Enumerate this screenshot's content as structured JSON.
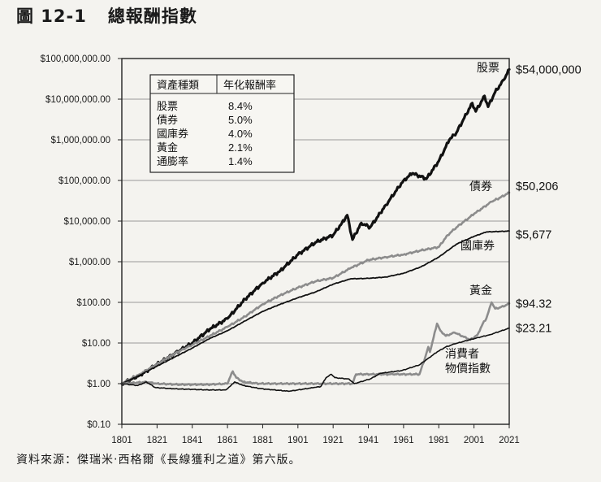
{
  "figure": {
    "number": "圖 12-1",
    "title": "總報酬指數",
    "source": "資料來源：傑瑞米‧西格爾《長線獲利之道》第六版。"
  },
  "chart_data": {
    "type": "line",
    "title": "總報酬指數",
    "xlabel": "",
    "ylabel": "",
    "yscale": "log",
    "ylim": [
      0.1,
      100000000
    ],
    "xlim": [
      1801,
      2021
    ],
    "grid": true,
    "x_ticks": [
      "1801",
      "1821",
      "1841",
      "1861",
      "1881",
      "1901",
      "1921",
      "1941",
      "1961",
      "1981",
      "2001",
      "2021"
    ],
    "y_ticks": [
      {
        "value": 100000000,
        "label": "$100,000,000.00"
      },
      {
        "value": 10000000,
        "label": "$10,000,000.00"
      },
      {
        "value": 1000000,
        "label": "$1,000,000.00"
      },
      {
        "value": 100000,
        "label": "$100,000.00"
      },
      {
        "value": 10000,
        "label": "$10,000.00"
      },
      {
        "value": 1000,
        "label": "$1,000.00"
      },
      {
        "value": 100,
        "label": "$100.00"
      },
      {
        "value": 10,
        "label": "$10.00"
      },
      {
        "value": 1,
        "label": "$1.00"
      },
      {
        "value": 0.1,
        "label": "$0.10"
      }
    ],
    "table": {
      "headers": [
        "資產種類",
        "年化報酬率"
      ],
      "rows": [
        [
          "股票",
          "8.4%"
        ],
        [
          "債券",
          "5.0%"
        ],
        [
          "國庫券",
          "4.0%"
        ],
        [
          "黃金",
          "2.1%"
        ],
        [
          "通膨率",
          "1.4%"
        ]
      ]
    },
    "series": [
      {
        "name": "股票",
        "final_label": "$54,000,000",
        "color": "#111111",
        "width": 3.2,
        "points": [
          [
            1801,
            1
          ],
          [
            1811,
            1.6
          ],
          [
            1821,
            3
          ],
          [
            1831,
            5.5
          ],
          [
            1841,
            10
          ],
          [
            1851,
            22
          ],
          [
            1861,
            40
          ],
          [
            1871,
            120
          ],
          [
            1881,
            300
          ],
          [
            1891,
            600
          ],
          [
            1901,
            1500
          ],
          [
            1911,
            3000
          ],
          [
            1921,
            4500
          ],
          [
            1926,
            9000
          ],
          [
            1929,
            14000
          ],
          [
            1932,
            3500
          ],
          [
            1937,
            9000
          ],
          [
            1942,
            7000
          ],
          [
            1951,
            25000
          ],
          [
            1961,
            100000
          ],
          [
            1966,
            150000
          ],
          [
            1974,
            110000
          ],
          [
            1981,
            300000
          ],
          [
            1987,
            1000000
          ],
          [
            1991,
            1500000
          ],
          [
            2000,
            8000000
          ],
          [
            2002,
            5000000
          ],
          [
            2007,
            12000000
          ],
          [
            2009,
            6500000
          ],
          [
            2013,
            15000000
          ],
          [
            2018,
            30000000
          ],
          [
            2021,
            54000000
          ]
        ]
      },
      {
        "name": "債券",
        "final_label": "$50,206",
        "color": "#8c8c8c",
        "width": 2.6,
        "points": [
          [
            1801,
            1
          ],
          [
            1811,
            1.7
          ],
          [
            1821,
            3
          ],
          [
            1831,
            5.5
          ],
          [
            1841,
            9
          ],
          [
            1851,
            15
          ],
          [
            1861,
            25
          ],
          [
            1871,
            45
          ],
          [
            1881,
            90
          ],
          [
            1891,
            150
          ],
          [
            1901,
            230
          ],
          [
            1911,
            330
          ],
          [
            1921,
            400
          ],
          [
            1931,
            700
          ],
          [
            1941,
            1100
          ],
          [
            1951,
            1300
          ],
          [
            1961,
            1500
          ],
          [
            1971,
            1900
          ],
          [
            1981,
            2300
          ],
          [
            1986,
            4500
          ],
          [
            1991,
            7000
          ],
          [
            2001,
            15000
          ],
          [
            2011,
            30000
          ],
          [
            2016,
            38000
          ],
          [
            2021,
            50206
          ]
        ]
      },
      {
        "name": "國庫券",
        "final_label": "$5,677",
        "color": "#111111",
        "width": 1.8,
        "points": [
          [
            1801,
            1
          ],
          [
            1811,
            1.6
          ],
          [
            1821,
            2.7
          ],
          [
            1831,
            4.5
          ],
          [
            1841,
            7.5
          ],
          [
            1851,
            13
          ],
          [
            1861,
            20
          ],
          [
            1871,
            35
          ],
          [
            1881,
            60
          ],
          [
            1891,
            90
          ],
          [
            1901,
            130
          ],
          [
            1911,
            180
          ],
          [
            1921,
            280
          ],
          [
            1931,
            380
          ],
          [
            1941,
            390
          ],
          [
            1951,
            420
          ],
          [
            1961,
            520
          ],
          [
            1971,
            750
          ],
          [
            1981,
            1300
          ],
          [
            1991,
            2700
          ],
          [
            2001,
            4200
          ],
          [
            2008,
            5400
          ],
          [
            2021,
            5677
          ]
        ]
      },
      {
        "name": "黃金",
        "final_label": "$94.32",
        "color": "#8c8c8c",
        "width": 2.6,
        "points": [
          [
            1801,
            1
          ],
          [
            1815,
            1.1
          ],
          [
            1821,
            1
          ],
          [
            1834,
            0.95
          ],
          [
            1850,
            0.95
          ],
          [
            1861,
            1
          ],
          [
            1862,
            1.3
          ],
          [
            1864,
            2
          ],
          [
            1866,
            1.4
          ],
          [
            1870,
            1.1
          ],
          [
            1879,
            1
          ],
          [
            1900,
            1
          ],
          [
            1932,
            1
          ],
          [
            1934,
            1.7
          ],
          [
            1955,
            1.7
          ],
          [
            1970,
            1.7
          ],
          [
            1973,
            4
          ],
          [
            1975,
            8
          ],
          [
            1976,
            6
          ],
          [
            1980,
            30
          ],
          [
            1982,
            20
          ],
          [
            1985,
            15
          ],
          [
            1990,
            18
          ],
          [
            1999,
            12
          ],
          [
            2003,
            16
          ],
          [
            2006,
            30
          ],
          [
            2008,
            40
          ],
          [
            2011,
            100
          ],
          [
            2013,
            70
          ],
          [
            2016,
            75
          ],
          [
            2019,
            85
          ],
          [
            2021,
            94.32
          ]
        ]
      },
      {
        "name": "消費者物價指數",
        "final_label": "$23.21",
        "color": "#111111",
        "width": 1.6,
        "points": [
          [
            1801,
            1
          ],
          [
            1810,
            0.9
          ],
          [
            1815,
            1.1
          ],
          [
            1820,
            0.8
          ],
          [
            1830,
            0.75
          ],
          [
            1850,
            0.7
          ],
          [
            1860,
            0.7
          ],
          [
            1863,
            0.9
          ],
          [
            1865,
            1.1
          ],
          [
            1870,
            0.9
          ],
          [
            1880,
            0.75
          ],
          [
            1896,
            0.65
          ],
          [
            1910,
            0.8
          ],
          [
            1914,
            0.85
          ],
          [
            1917,
            1.4
          ],
          [
            1920,
            1.7
          ],
          [
            1922,
            1.4
          ],
          [
            1930,
            1.3
          ],
          [
            1933,
            1
          ],
          [
            1942,
            1.3
          ],
          [
            1948,
            1.8
          ],
          [
            1960,
            2.1
          ],
          [
            1970,
            2.9
          ],
          [
            1975,
            4.2
          ],
          [
            1980,
            6
          ],
          [
            1985,
            8
          ],
          [
            1990,
            9.5
          ],
          [
            2000,
            12.5
          ],
          [
            2010,
            16
          ],
          [
            2021,
            23.21
          ]
        ]
      }
    ],
    "series_labels": [
      {
        "text": "股票",
        "near": "top-right"
      },
      {
        "text": "債券"
      },
      {
        "text": "國庫券"
      },
      {
        "text": "黃金"
      },
      {
        "text": "消費者",
        "line2": "物價指數"
      }
    ]
  }
}
